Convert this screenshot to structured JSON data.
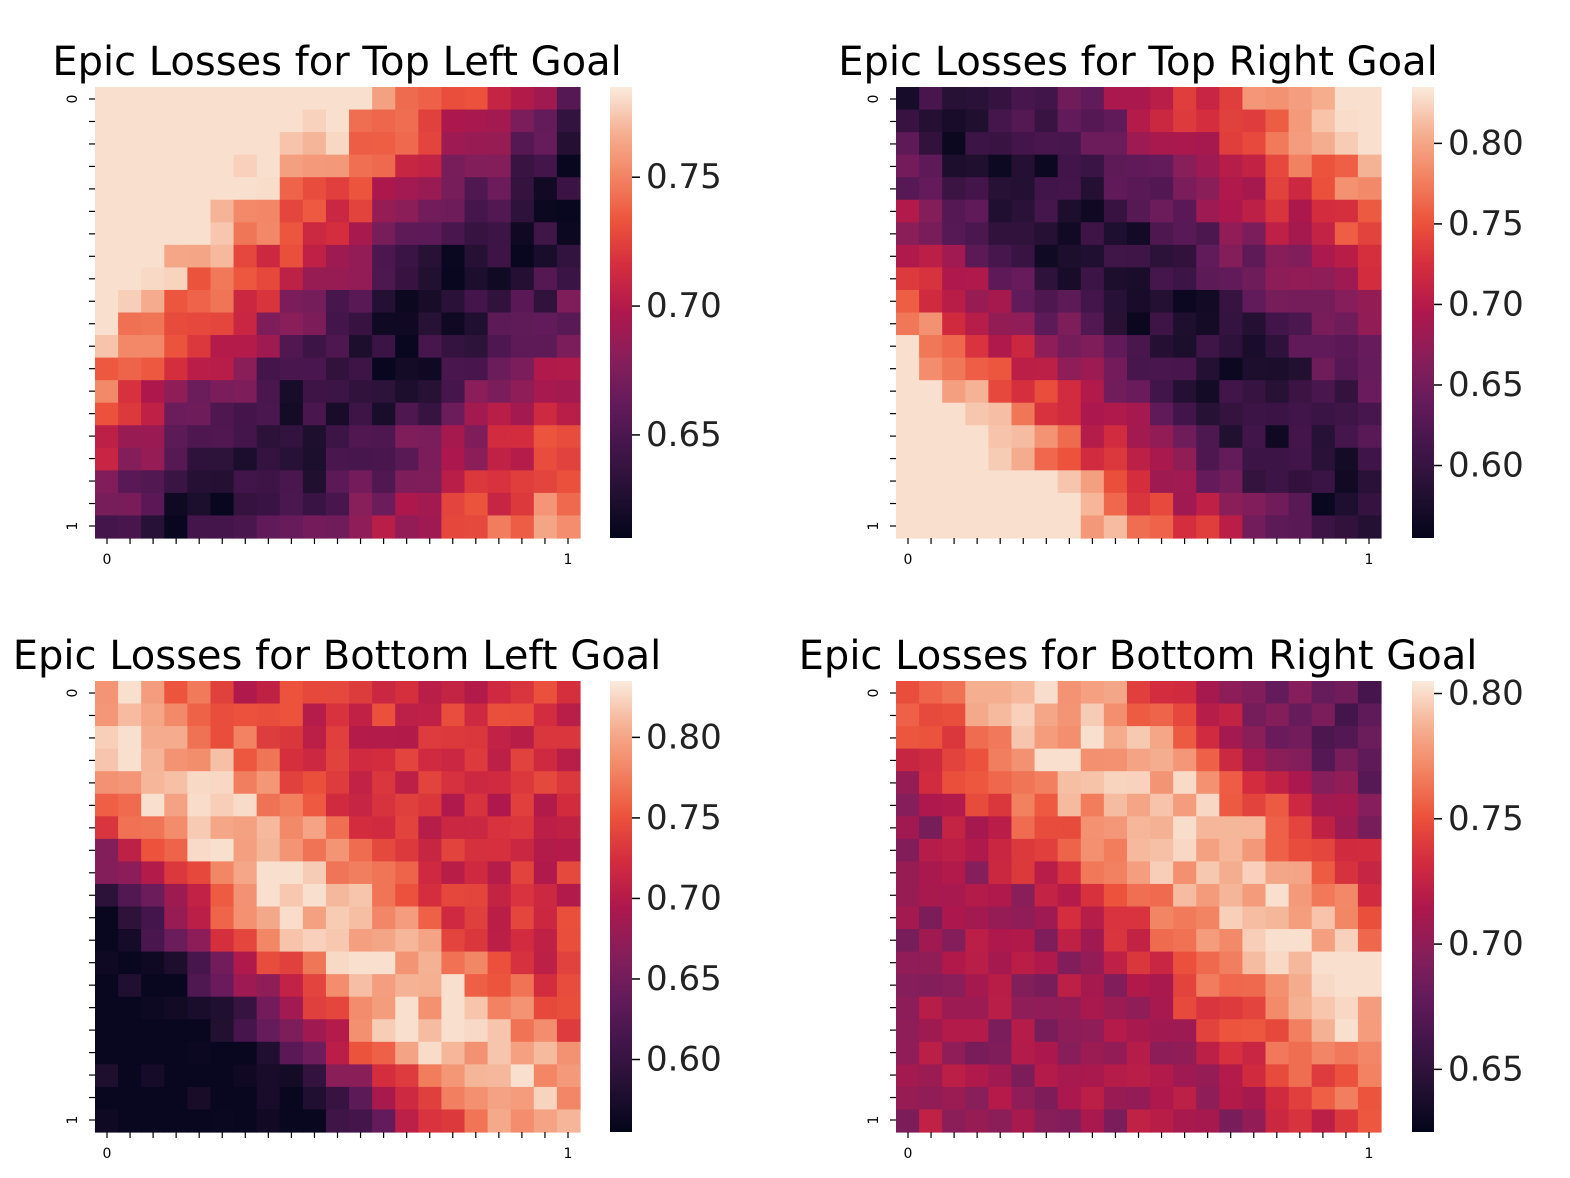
{
  "chart_data": [
    {
      "type": "heatmap",
      "title": "Epic Losses for Top Left Goal",
      "rows": 20,
      "cols": 21,
      "x_tick_labels": [
        "0",
        "1"
      ],
      "y_tick_labels": [
        "0",
        "1"
      ],
      "colorbar": {
        "range": [
          0.61,
          0.785
        ],
        "ticks": [
          0.65,
          0.7,
          0.75
        ]
      },
      "pattern": "dark band along anti-diagonal from top-center to right edge; high values bottom-left",
      "pattern_params": {
        "kind": "band",
        "coef": [
          1,
          1.05
        ],
        "center": 1.24,
        "width": 0.2,
        "floor": 0.46,
        "slope_low": 1.4,
        "slope_high": 1.1,
        "noise": 0.22
      }
    },
    {
      "type": "heatmap",
      "title": "Epic Losses for Top Right Goal",
      "rows": 20,
      "cols": 21,
      "x_tick_labels": [
        "0",
        "1"
      ],
      "y_tick_labels": [
        "0",
        "1"
      ],
      "colorbar": {
        "range": [
          0.555,
          0.835
        ],
        "ticks": [
          0.6,
          0.65,
          0.7,
          0.75,
          0.8
        ]
      },
      "pattern": "dark band from top-left to bottom-right; high values top-right",
      "pattern_params": {
        "kind": "band",
        "coef": [
          -1,
          1
        ],
        "center": -0.05,
        "width": 0.22,
        "floor": 0.48,
        "slope_low": 1.1,
        "slope_high": 1.5,
        "noise": 0.2
      }
    },
    {
      "type": "heatmap",
      "title": "Epic Losses for Bottom Left Goal",
      "rows": 20,
      "cols": 21,
      "x_tick_labels": [
        "0",
        "1"
      ],
      "y_tick_labels": [
        "0",
        "1"
      ],
      "colorbar": {
        "range": [
          0.555,
          0.835
        ],
        "ticks": [
          0.6,
          0.65,
          0.7,
          0.75,
          0.8
        ]
      },
      "pattern": "bright band from top-left to bottom-right; dark top-right",
      "pattern_params": {
        "kind": "ridge",
        "coef": [
          -1,
          1
        ],
        "center": 0.06,
        "width": 0.2,
        "drop_low": 1.35,
        "drop_high": 2.4,
        "base_low": 0.6,
        "base_high": 0.0,
        "noise": 0.2
      }
    },
    {
      "type": "heatmap",
      "title": "Epic Losses for Bottom Right Goal",
      "rows": 20,
      "cols": 21,
      "x_tick_labels": [
        "0",
        "1"
      ],
      "y_tick_labels": [
        "0",
        "1"
      ],
      "colorbar": {
        "range": [
          0.625,
          0.805
        ],
        "ticks": [
          0.65,
          0.7,
          0.75,
          0.8
        ]
      },
      "pattern": "bright band from top-center toward bottom-right; dark bottom-left",
      "pattern_params": {
        "kind": "ridge",
        "coef": [
          -1,
          1
        ],
        "center": -0.27,
        "width": 0.2,
        "drop_low": 1.6,
        "drop_high": 1.1,
        "base_low": 0.3,
        "base_high": 0.45,
        "noise": 0.2
      }
    }
  ]
}
